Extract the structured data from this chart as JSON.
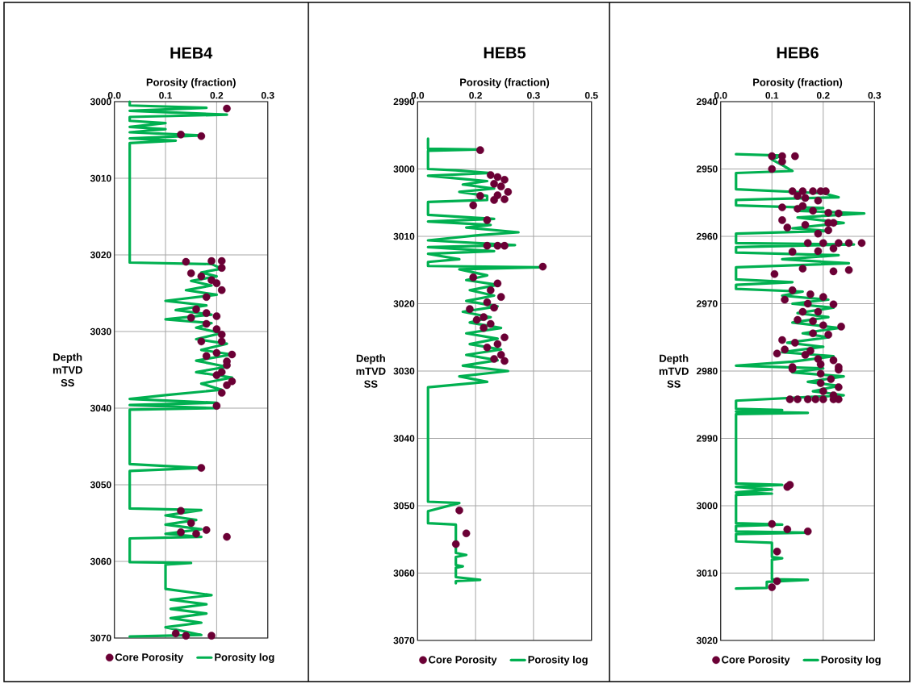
{
  "chart_data": [
    {
      "type": "line",
      "title": "HEB4",
      "xlabel": "Porosity (fraction)",
      "ylabel": "Depth mTVD SS",
      "xlim": [
        0,
        0.3
      ],
      "xticks": [
        {
          "value": 0,
          "label": "0.0"
        },
        0.1,
        0.2,
        0.3
      ],
      "ylim": [
        3070,
        3000
      ],
      "yticks": [
        3000,
        3010,
        3020,
        3030,
        3040,
        3050,
        3060,
        3070
      ],
      "grid": true,
      "legend": "bottom",
      "series": [
        {
          "name": "Core Porosity",
          "type": "scatter",
          "marker": "circle",
          "color": "#6b0035",
          "x": [
            0.22,
            0.13,
            0.17,
            0.14,
            0.19,
            0.21,
            0.21,
            0.15,
            0.17,
            0.19,
            0.2,
            0.21,
            0.18,
            0.16,
            0.15,
            0.18,
            0.2,
            0.18,
            0.2,
            0.21,
            0.21,
            0.17,
            0.23,
            0.2,
            0.18,
            0.22,
            0.22,
            0.2,
            0.21,
            0.23,
            0.22,
            0.21,
            0.2,
            0.17,
            0.13,
            0.15,
            0.18,
            0.13,
            0.16,
            0.22,
            0.12,
            0.14,
            0.19
          ],
          "values": [
            3000.9,
            3004.3,
            3004.5,
            3020.9,
            3020.8,
            3020.8,
            3021.7,
            3022.4,
            3022.8,
            3023.3,
            3023.7,
            3024.6,
            3025.5,
            3027.1,
            3028.2,
            3027.6,
            3028.0,
            3029.0,
            3029.7,
            3030.4,
            3031.3,
            3031.3,
            3033.0,
            3032.8,
            3033.2,
            3033.9,
            3034.4,
            3035.7,
            3035.3,
            3036.5,
            3037.0,
            3038.0,
            3039.7,
            3047.8,
            3053.4,
            3055.0,
            3055.9,
            3056.2,
            3056.4,
            3056.8,
            3069.4,
            3069.7,
            3069.7
          ]
        },
        {
          "name": "Porosity log",
          "type": "line",
          "marker": "none",
          "line_style": "solid",
          "color": "#00b050",
          "x": [
            0.03,
            0.03,
            0.18,
            0.03,
            0.22,
            0.03,
            0.03,
            0.1,
            0.03,
            0.1,
            0.03,
            0.17,
            0.03,
            0.12,
            0.03,
            0.03,
            0.19,
            0.21,
            0.17,
            0.2,
            0.15,
            0.19,
            0.14,
            0.2,
            0.1,
            0.18,
            0.12,
            0.19,
            0.1,
            0.19,
            0.16,
            0.21,
            0.16,
            0.22,
            0.17,
            0.23,
            0.16,
            0.22,
            0.16,
            0.23,
            0.17,
            0.21,
            0.1,
            0.03,
            0.2,
            0.03,
            0.2,
            0.03,
            0.03,
            0.17,
            0.03,
            0.03,
            0.17,
            0.1,
            0.16,
            0.1,
            0.17,
            0.1,
            0.17,
            0.03,
            0.03,
            0.15,
            0.1,
            0.1,
            0.19,
            0.11,
            0.18,
            0.11,
            0.18,
            0.11,
            0.17,
            0.1,
            0.17,
            0.03
          ],
          "values": [
            3000,
            3000.5,
            3000.8,
            3001.2,
            3001.7,
            3002.0,
            3002.5,
            3002.8,
            3003.3,
            3003.6,
            3004.0,
            3004.4,
            3004.8,
            3005.1,
            3005.4,
            3021.0,
            3021.2,
            3021.8,
            3022.3,
            3022.8,
            3023.4,
            3024.0,
            3024.6,
            3025.2,
            3026.0,
            3026.6,
            3027.2,
            3027.8,
            3028.4,
            3028.9,
            3029.5,
            3030.2,
            3031.0,
            3031.6,
            3032.4,
            3033.0,
            3033.8,
            3034.6,
            3035.3,
            3036.0,
            3036.8,
            3037.6,
            3038.3,
            3038.8,
            3039.3,
            3039.6,
            3040.0,
            3040.2,
            3047.3,
            3047.8,
            3048.2,
            3053.1,
            3053.3,
            3054.0,
            3054.6,
            3055.2,
            3055.8,
            3056.4,
            3056.8,
            3057.0,
            3060.1,
            3060.2,
            3060.4,
            3063.6,
            3064.4,
            3065.0,
            3065.6,
            3066.2,
            3066.8,
            3067.4,
            3068.0,
            3068.6,
            3069.6,
            3069.8
          ]
        }
      ]
    },
    {
      "type": "line",
      "title": "HEB5",
      "xlabel": "Porosity (fraction)",
      "ylabel": "Depth mTVD SS",
      "xlim": [
        0,
        0.5
      ],
      "xticks": [
        {
          "value": 0,
          "label": "0.0"
        },
        {
          "value": 0.1667,
          "label": "0.2"
        },
        {
          "value": 0.3333,
          "label": "0.3"
        },
        0.5
      ],
      "ylim": [
        3070,
        2990
      ],
      "yticks": [
        2990,
        3000,
        3010,
        3020,
        3030,
        3040,
        3050,
        3060,
        3070
      ],
      "grid": true,
      "legend": "bottom",
      "series": [
        {
          "name": "Core Porosity",
          "type": "scatter",
          "marker": "circle",
          "color": "#6b0035",
          "x": [
            0.18,
            0.21,
            0.23,
            0.25,
            0.22,
            0.24,
            0.26,
            0.23,
            0.25,
            0.22,
            0.18,
            0.16,
            0.2,
            0.2,
            0.23,
            0.25,
            0.36,
            0.16,
            0.23,
            0.21,
            0.24,
            0.2,
            0.22,
            0.15,
            0.17,
            0.19,
            0.21,
            0.19,
            0.25,
            0.23,
            0.2,
            0.24,
            0.22,
            0.25,
            0.12,
            0.14,
            0.11
          ],
          "values": [
            2997.2,
            3000.9,
            3001.2,
            3001.6,
            3002.2,
            3002.6,
            3003.4,
            3003.9,
            3004.5,
            3004.6,
            3004.0,
            3005.4,
            3007.6,
            3011.4,
            3011.4,
            3011.4,
            3014.5,
            3016.1,
            3017.0,
            3018.0,
            3019.0,
            3019.8,
            3020.6,
            3020.8,
            3022.4,
            3022.0,
            3023.0,
            3023.6,
            3025.0,
            3026.0,
            3026.5,
            3027.6,
            3028.2,
            3028.5,
            3050.7,
            3054.1,
            3055.7
          ]
        },
        {
          "name": "Porosity log",
          "type": "line",
          "marker": "none",
          "line_style": "solid",
          "color": "#00b050",
          "x": [
            0.03,
            0.03,
            0.17,
            0.03,
            0.03,
            0.11,
            0.21,
            0.03,
            0.2,
            0.13,
            0.22,
            0.12,
            0.2,
            0.2,
            0.03,
            0.03,
            0.22,
            0.03,
            0.21,
            0.14,
            0.29,
            0.18,
            0.03,
            0.28,
            0.03,
            0.22,
            0.03,
            0.12,
            0.03,
            0.03,
            0.35,
            0.12,
            0.2,
            0.14,
            0.23,
            0.15,
            0.22,
            0.14,
            0.23,
            0.13,
            0.21,
            0.15,
            0.24,
            0.14,
            0.23,
            0.15,
            0.24,
            0.14,
            0.23,
            0.13,
            0.26,
            0.12,
            0.2,
            0.03,
            0.03,
            0.12,
            0.03,
            0.03,
            0.11,
            0.11,
            0.14,
            0.11,
            0.11,
            0.13,
            0.11,
            0.11,
            0.18,
            0.11,
            0.11
          ],
          "values": [
            2995.5,
            2997.0,
            2997.1,
            2997.3,
            3000.0,
            3000.2,
            3000.6,
            3001.0,
            3001.8,
            3002.3,
            3002.9,
            3003.4,
            3004.0,
            3004.6,
            3004.9,
            3006.8,
            3007.4,
            3007.8,
            3008.3,
            3008.7,
            3009.4,
            3009.8,
            3010.6,
            3011.3,
            3011.6,
            3012.2,
            3012.6,
            3013.4,
            3013.8,
            3014.4,
            3014.6,
            3014.9,
            3015.8,
            3016.5,
            3017.2,
            3018.0,
            3018.8,
            3019.6,
            3020.4,
            3021.2,
            3022.0,
            3022.8,
            3023.6,
            3024.4,
            3025.2,
            3026.0,
            3026.8,
            3027.6,
            3028.4,
            3029.2,
            3030.0,
            3030.8,
            3031.6,
            3032.4,
            3049.4,
            3049.6,
            3050.8,
            3052.6,
            3052.8,
            3057.0,
            3057.3,
            3057.6,
            3058.8,
            3059.0,
            3059.2,
            3060.6,
            3061.0,
            3061.2,
            3061.5
          ]
        }
      ]
    },
    {
      "type": "line",
      "title": "HEB6",
      "xlabel": "Porosity (fraction)",
      "ylabel": "Depth mTVD SS",
      "xlim": [
        0,
        0.3
      ],
      "xticks": [
        {
          "value": 0,
          "label": "0.0"
        },
        0.1,
        0.2,
        0.3
      ],
      "ylim": [
        3020,
        2940
      ],
      "yticks": [
        2940,
        2950,
        2960,
        2970,
        2980,
        2990,
        3000,
        3010,
        3020
      ],
      "grid": true,
      "legend": "bottom",
      "series": [
        {
          "name": "Core Porosity",
          "type": "scatter",
          "marker": "circle",
          "color": "#6b0035",
          "x": [
            0.1,
            0.12,
            0.145,
            0.12,
            0.1,
            0.14,
            0.16,
            0.18,
            0.195,
            0.205,
            0.15,
            0.165,
            0.19,
            0.12,
            0.15,
            0.16,
            0.18,
            0.21,
            0.23,
            0.12,
            0.13,
            0.165,
            0.21,
            0.22,
            0.21,
            0.19,
            0.17,
            0.2,
            0.23,
            0.25,
            0.275,
            0.14,
            0.19,
            0.22,
            0.16,
            0.105,
            0.22,
            0.25,
            0.14,
            0.125,
            0.175,
            0.2,
            0.22,
            0.17,
            0.16,
            0.19,
            0.15,
            0.18,
            0.2,
            0.235,
            0.18,
            0.21,
            0.12,
            0.145,
            0.125,
            0.11,
            0.165,
            0.175,
            0.19,
            0.22,
            0.14,
            0.23,
            0.14,
            0.195,
            0.23,
            0.195,
            0.215,
            0.195,
            0.23,
            0.2,
            0.22,
            0.135,
            0.15,
            0.17,
            0.185,
            0.2,
            0.22,
            0.23,
            0.13,
            0.135,
            0.1,
            0.13,
            0.17,
            0.11,
            0.11,
            0.1
          ],
          "values": [
            2948.1,
            2948.1,
            2948.1,
            2948.9,
            2950.0,
            2953.3,
            2953.3,
            2953.3,
            2953.3,
            2953.3,
            2954.0,
            2954.3,
            2954.7,
            2955.7,
            2955.9,
            2955.5,
            2956.2,
            2956.5,
            2956.6,
            2957.6,
            2958.7,
            2958.3,
            2958.0,
            2958.0,
            2959.1,
            2959.6,
            2961.0,
            2961.0,
            2961.0,
            2961.0,
            2961.0,
            2962.3,
            2962.2,
            2961.8,
            2964.8,
            2965.6,
            2965.2,
            2965.0,
            2968.0,
            2969.4,
            2968.6,
            2969.0,
            2970.1,
            2970.0,
            2971.2,
            2971.2,
            2972.4,
            2972.6,
            2973.2,
            2973.4,
            2974.4,
            2974.6,
            2975.4,
            2975.8,
            2976.8,
            2977.4,
            2977.6,
            2977.0,
            2978.2,
            2978.4,
            2979.4,
            2979.4,
            2979.7,
            2979.0,
            2979.8,
            2980.4,
            2981.2,
            2981.8,
            2982.4,
            2983.0,
            2983.6,
            2984.2,
            2984.2,
            2984.2,
            2984.2,
            2984.2,
            2984.2,
            2984.2,
            2997.2,
            2996.9,
            3002.7,
            3003.5,
            3003.8,
            3006.8,
            3011.2,
            3012.1
          ]
        },
        {
          "name": "Porosity log",
          "type": "line",
          "marker": "none",
          "line_style": "solid",
          "color": "#00b050",
          "x": [
            0.03,
            0.12,
            0.1,
            0.12,
            0.14,
            0.03,
            0.03,
            0.2,
            0.23,
            0.03,
            0.03,
            0.2,
            0.15,
            0.28,
            0.15,
            0.24,
            0.14,
            0.21,
            0.03,
            0.03,
            0.26,
            0.03,
            0.03,
            0.23,
            0.12,
            0.25,
            0.03,
            0.03,
            0.14,
            0.03,
            0.03,
            0.16,
            0.12,
            0.21,
            0.14,
            0.22,
            0.15,
            0.21,
            0.14,
            0.23,
            0.16,
            0.21,
            0.13,
            0.2,
            0.12,
            0.22,
            0.14,
            0.03,
            0.2,
            0.14,
            0.24,
            0.17,
            0.23,
            0.18,
            0.24,
            0.03,
            0.03,
            0.12,
            0.03,
            0.17,
            0.03,
            0.03,
            0.12,
            0.03,
            0.1,
            0.03,
            0.1,
            0.03,
            0.03,
            0.12,
            0.03,
            0.03,
            0.17,
            0.03,
            0.03,
            0.1,
            0.1,
            0.12,
            0.1,
            0.1,
            0.17,
            0.09,
            0.09,
            0.03
          ],
          "values": [
            2947.8,
            2948.0,
            2948.6,
            2949.4,
            2950.3,
            2950.6,
            2953.0,
            2953.6,
            2954.2,
            2954.6,
            2955.4,
            2955.8,
            2956.2,
            2956.6,
            2957.2,
            2958.0,
            2958.8,
            2959.2,
            2959.6,
            2961.0,
            2961.2,
            2961.6,
            2962.4,
            2962.8,
            2963.4,
            2964.0,
            2964.6,
            2966.4,
            2966.8,
            2967.2,
            2967.8,
            2968.2,
            2968.8,
            2969.4,
            2970.0,
            2970.6,
            2971.4,
            2972.0,
            2972.8,
            2973.6,
            2974.4,
            2975.0,
            2975.8,
            2976.4,
            2977.2,
            2977.8,
            2978.6,
            2979.2,
            2979.6,
            2980.2,
            2980.8,
            2981.6,
            2982.2,
            2983.0,
            2983.6,
            2984.4,
            2985.6,
            2985.8,
            2986.0,
            2986.2,
            2986.4,
            2996.7,
            2996.9,
            2997.2,
            2997.6,
            2998.0,
            2998.2,
            2998.4,
            3002.6,
            3002.8,
            3003.0,
            3003.8,
            3004.0,
            3004.2,
            3005.3,
            3005.5,
            3007.6,
            3007.8,
            3008.0,
            3010.9,
            3011.0,
            3011.3,
            3012.2,
            3012.3
          ]
        }
      ]
    }
  ]
}
